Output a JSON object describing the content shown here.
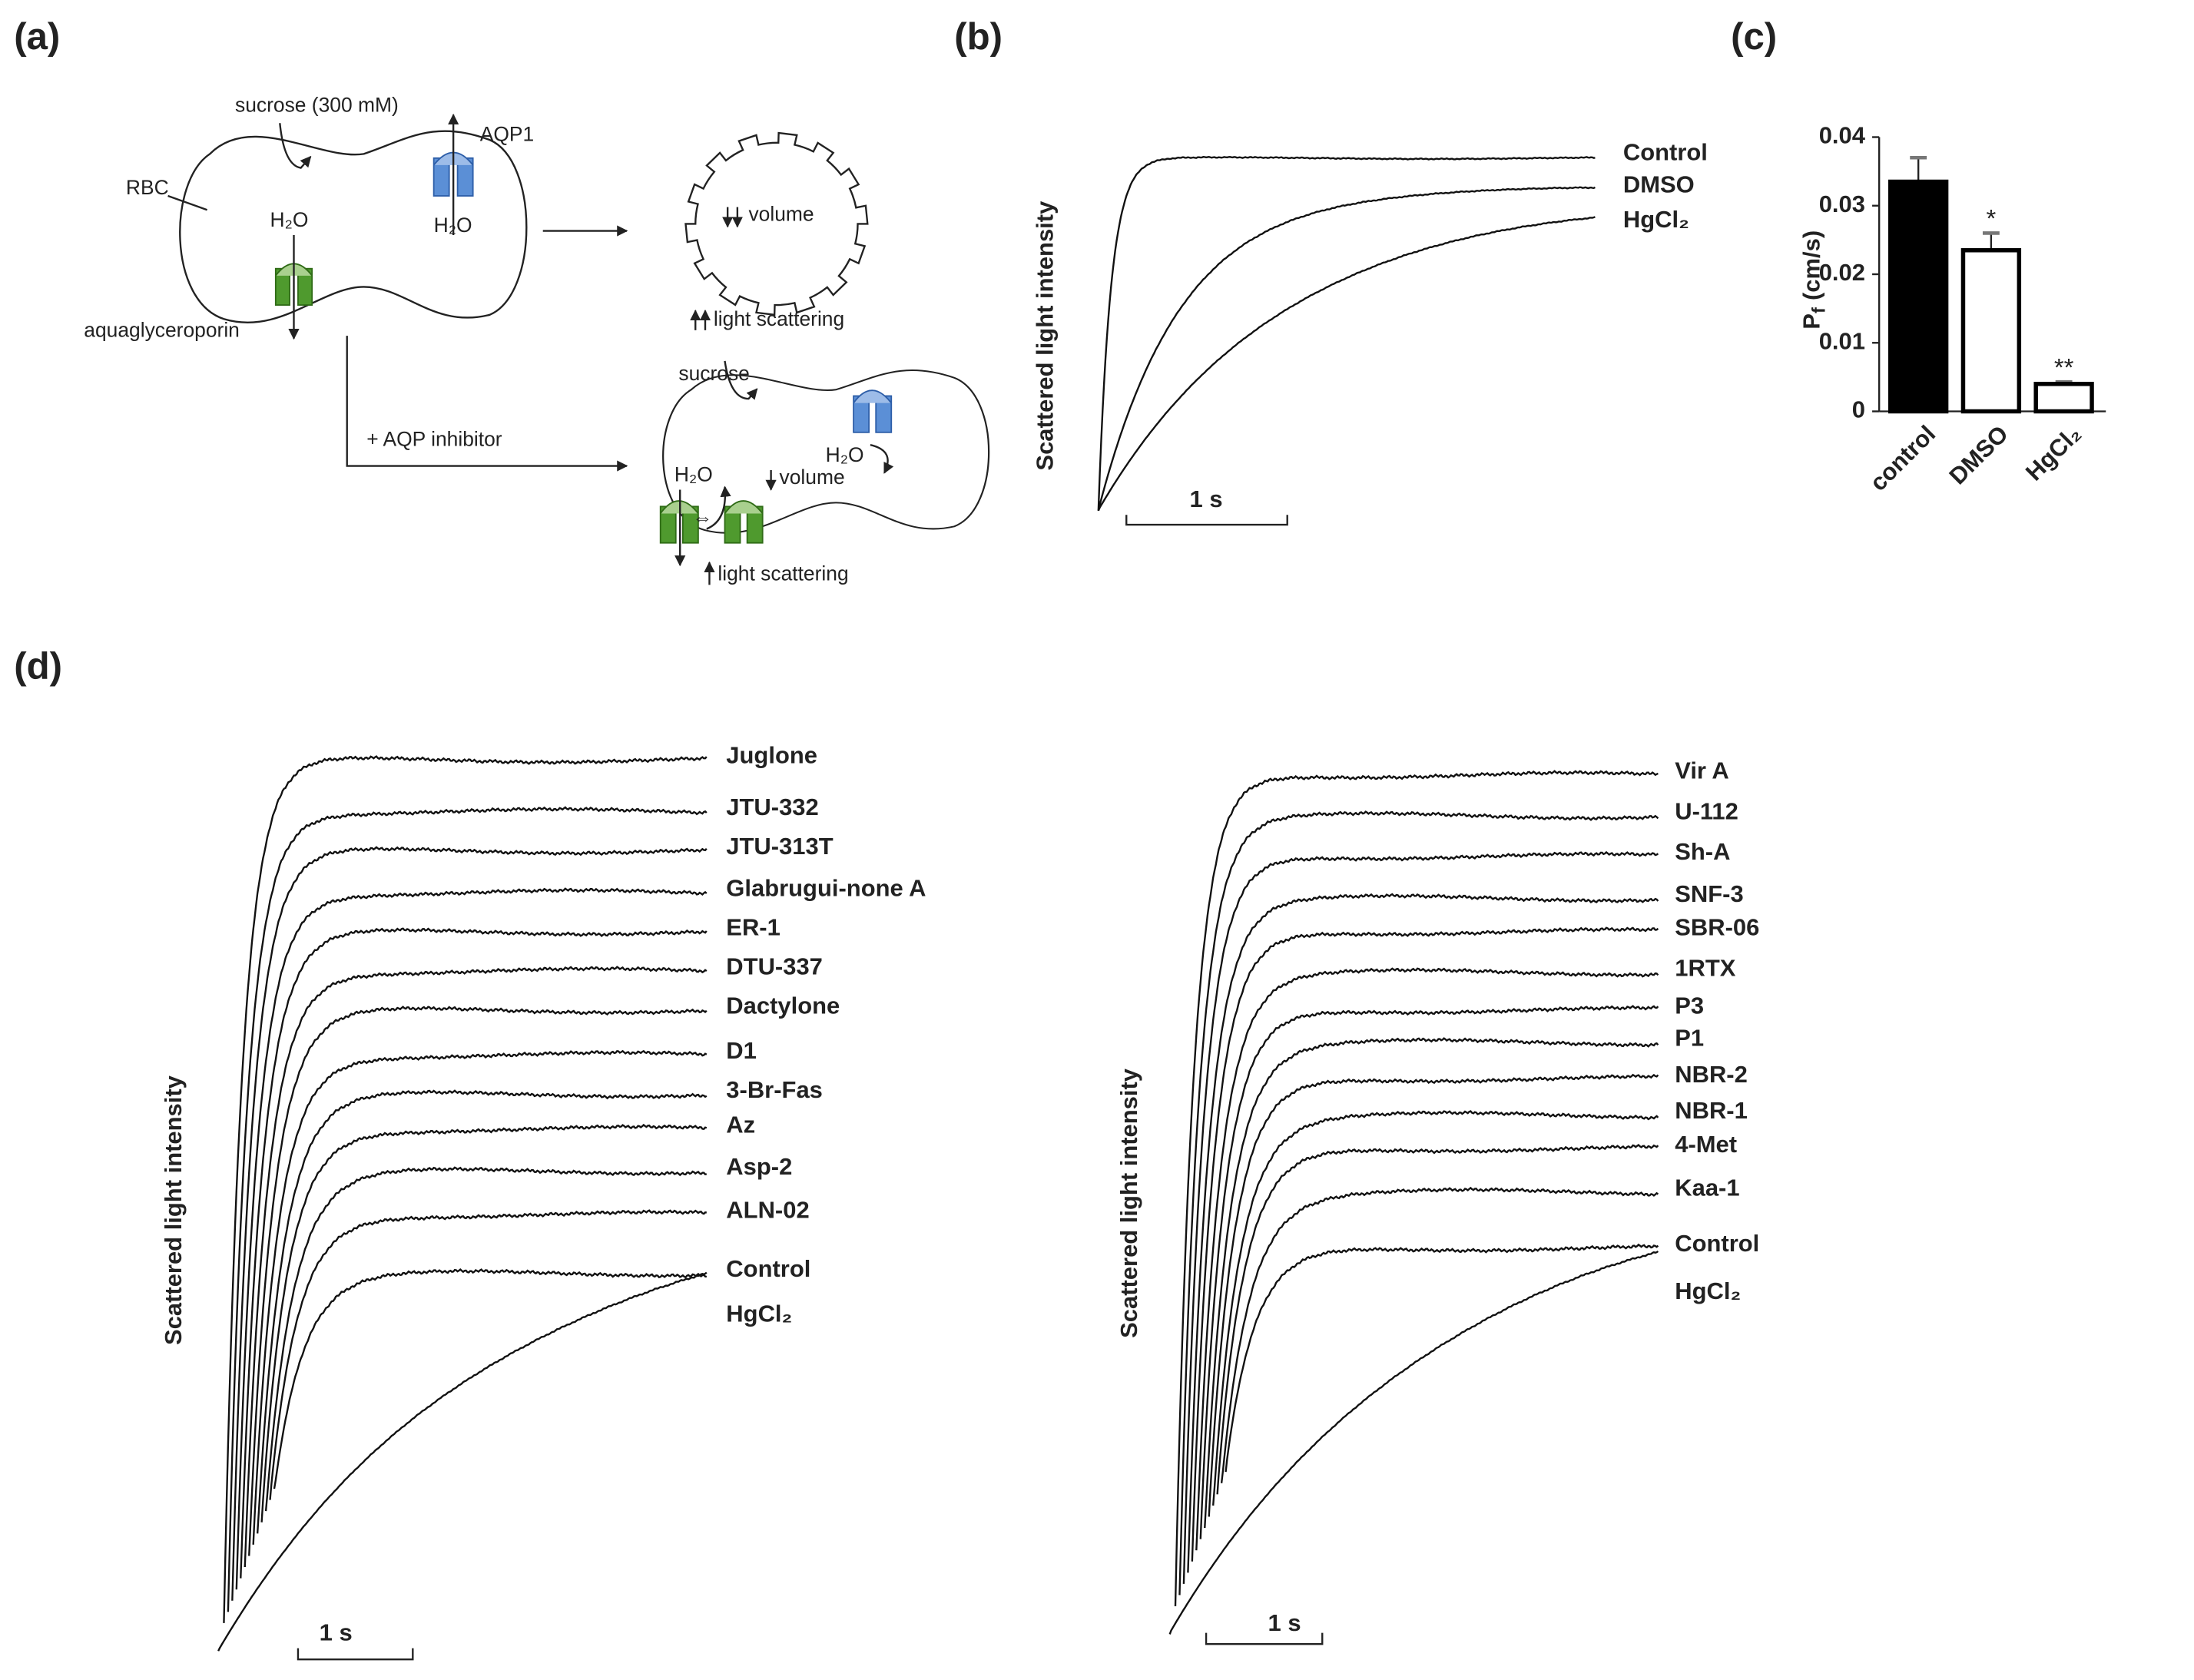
{
  "panel_labels": [
    "(a)",
    "(b)",
    "(c)",
    "(d)"
  ],
  "diagram": {
    "sucrose_300": "sucrose (300 mM)",
    "aqp1": "AQP1",
    "rbc": "RBC",
    "h2o": [
      "H₂O",
      "H₂O",
      "H₂O",
      "H₂O"
    ],
    "aquaglyceroporin": "aquaglyceroporin",
    "volume": [
      "volume",
      "volume"
    ],
    "light_scattering": [
      "light scattering",
      "light scattering"
    ],
    "inhibitor": "+ AQP inhibitor",
    "sucrose": "sucrose"
  },
  "panel_b": {
    "y_label": "Scattered light intensity",
    "scale_bar": "1 s",
    "traces": [
      "Control",
      "DMSO",
      "HgCl₂"
    ]
  },
  "chart_data": {
    "type": "bar",
    "categories": [
      "control",
      "DMSO",
      "HgCl₂"
    ],
    "values": [
      0.0335,
      0.0235,
      0.004
    ],
    "errors": [
      0.0035,
      0.0025,
      0.0003
    ],
    "colors": [
      "#000000",
      "#ffffff",
      "#ffffff"
    ],
    "annotations": [
      null,
      "*",
      "**"
    ],
    "ylabel": [
      "P",
      "f",
      "(cm/s)"
    ],
    "ylim": [
      0,
      0.04
    ],
    "yticks": [
      0,
      0.01,
      0.02,
      0.03,
      0.04
    ]
  },
  "panel_d": {
    "y_label": "Scattered light intensity",
    "scale_bar": "1 s",
    "left": [
      {
        "name": "Juglone"
      },
      {
        "name": "JTU-332"
      },
      {
        "name": "JTU-313T"
      },
      {
        "name": "Glabrugui-none A"
      },
      {
        "name": "ER-1"
      },
      {
        "name": "DTU-337"
      },
      {
        "name": "Dactylone"
      },
      {
        "name": "D1"
      },
      {
        "name": "3-Br-Fas"
      },
      {
        "name": "Az"
      },
      {
        "name": "Asp-2"
      },
      {
        "name": "ALN-02"
      },
      {
        "name": "Control",
        "color": "#e8141c"
      },
      {
        "name": "HgCl₂",
        "color": "#1b7bd0"
      }
    ],
    "right": [
      {
        "name": "Vir A"
      },
      {
        "name": "U-112"
      },
      {
        "name": "Sh-A"
      },
      {
        "name": "SNF-3"
      },
      {
        "name": "SBR-06"
      },
      {
        "name": "1RTX"
      },
      {
        "name": "P3"
      },
      {
        "name": "P1"
      },
      {
        "name": "NBR-2"
      },
      {
        "name": "NBR-1"
      },
      {
        "name": "4-Met"
      },
      {
        "name": "Kaa-1"
      },
      {
        "name": "Control",
        "color": "#e8141c"
      },
      {
        "name": "HgCl₂",
        "color": "#1b7bd0"
      }
    ]
  }
}
